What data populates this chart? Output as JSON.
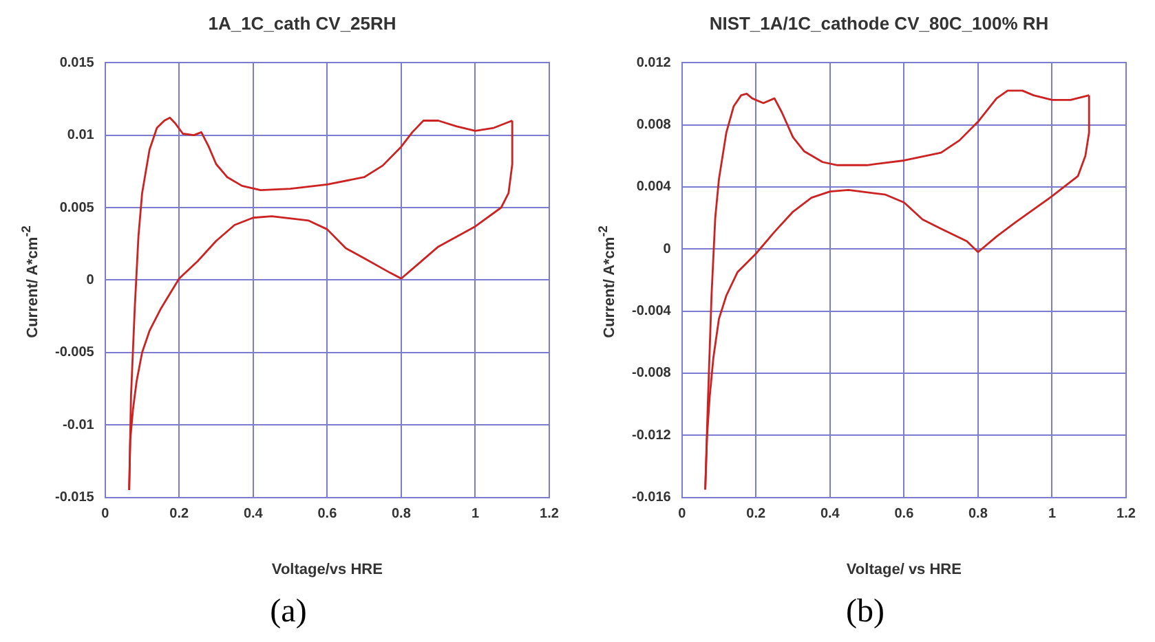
{
  "chart_data": [
    {
      "type": "line",
      "title": "1A_1C_cath CV_25RH",
      "xlabel": "Voltage/vs HRE",
      "ylabel": "Current/ A*cm$^{-2}$",
      "annotations": [
        "(a)"
      ],
      "grid": true,
      "legend": false,
      "marker": "none",
      "line_style": "solid",
      "xlim": [
        0,
        1.2
      ],
      "xticks": [
        0,
        0.2,
        0.4,
        0.6,
        0.8,
        1,
        1.2
      ],
      "ylim": [
        -0.015,
        0.015
      ],
      "yticks": [
        -0.015,
        -0.01,
        -0.005,
        0,
        0.005,
        0.01,
        0.015
      ],
      "series": [
        {
          "color": "#cc2222",
          "x": [
            0.065,
            0.07,
            0.08,
            0.09,
            0.1,
            0.12,
            0.14,
            0.16,
            0.175,
            0.19,
            0.21,
            0.24,
            0.26,
            0.28,
            0.3,
            0.33,
            0.37,
            0.42,
            0.5,
            0.6,
            0.7,
            0.75,
            0.8,
            0.83,
            0.86,
            0.9,
            0.95,
            1.0,
            1.05,
            1.1
          ],
          "values": [
            -0.0145,
            -0.008,
            -0.002,
            0.003,
            0.006,
            0.009,
            0.0105,
            0.011,
            0.0112,
            0.0108,
            0.0101,
            0.01,
            0.0102,
            0.0092,
            0.008,
            0.0071,
            0.0065,
            0.0062,
            0.0063,
            0.0066,
            0.0071,
            0.0079,
            0.0092,
            0.0102,
            0.011,
            0.011,
            0.0106,
            0.0103,
            0.0105,
            0.011
          ]
        },
        {
          "color": "#cc2222",
          "x": [
            0.065,
            0.068,
            0.075,
            0.085,
            0.1,
            0.12,
            0.15,
            0.2,
            0.25,
            0.3,
            0.35,
            0.4,
            0.45,
            0.55,
            0.6,
            0.65,
            0.7,
            0.77,
            0.8,
            0.85,
            0.9,
            1.0,
            1.07,
            1.09,
            1.1,
            1.1
          ],
          "values": [
            -0.0145,
            -0.011,
            -0.009,
            -0.007,
            -0.005,
            -0.0035,
            -0.002,
            0.0001,
            0.0013,
            0.0027,
            0.0038,
            0.0043,
            0.0044,
            0.0041,
            0.0035,
            0.0022,
            0.0015,
            0.0005,
            0.0001,
            0.0012,
            0.0023,
            0.0037,
            0.005,
            0.006,
            0.008,
            0.011
          ]
        }
      ]
    },
    {
      "type": "line",
      "title": "NIST_1A/1C_cathode CV_80C_100% RH",
      "xlabel": "Voltage/ vs HRE",
      "ylabel": "Current/ A*cm$^{-2}$",
      "annotations": [
        "(b)"
      ],
      "grid": true,
      "legend": false,
      "marker": "none",
      "line_style": "solid",
      "xlim": [
        0,
        1.2
      ],
      "xticks": [
        0,
        0.2,
        0.4,
        0.6,
        0.8,
        1,
        1.2
      ],
      "ylim": [
        -0.016,
        0.012
      ],
      "yticks": [
        -0.016,
        -0.012,
        -0.008,
        -0.004,
        0,
        0.004,
        0.008,
        0.012
      ],
      "series": [
        {
          "color": "#cc2222",
          "x": [
            0.063,
            0.07,
            0.08,
            0.09,
            0.1,
            0.12,
            0.14,
            0.16,
            0.175,
            0.19,
            0.22,
            0.25,
            0.27,
            0.3,
            0.33,
            0.38,
            0.42,
            0.5,
            0.6,
            0.7,
            0.75,
            0.8,
            0.85,
            0.88,
            0.92,
            0.95,
            1.0,
            1.05,
            1.1
          ],
          "values": [
            -0.0155,
            -0.01,
            -0.003,
            0.002,
            0.0045,
            0.0075,
            0.0092,
            0.0099,
            0.01,
            0.0097,
            0.0094,
            0.0097,
            0.0088,
            0.0072,
            0.0063,
            0.0056,
            0.0054,
            0.0054,
            0.0057,
            0.0062,
            0.007,
            0.0082,
            0.0097,
            0.0102,
            0.0102,
            0.0099,
            0.0096,
            0.0096,
            0.0099
          ]
        },
        {
          "color": "#cc2222",
          "x": [
            0.063,
            0.068,
            0.075,
            0.085,
            0.1,
            0.12,
            0.15,
            0.2,
            0.25,
            0.3,
            0.35,
            0.4,
            0.45,
            0.55,
            0.6,
            0.65,
            0.7,
            0.77,
            0.8,
            0.85,
            0.9,
            1.0,
            1.07,
            1.09,
            1.1,
            1.1
          ],
          "values": [
            -0.0155,
            -0.012,
            -0.0095,
            -0.007,
            -0.0045,
            -0.003,
            -0.0015,
            -0.0003,
            0.0011,
            0.0024,
            0.0033,
            0.0037,
            0.0038,
            0.0035,
            0.003,
            0.0019,
            0.0013,
            0.0005,
            -0.0002,
            0.0008,
            0.0017,
            0.0034,
            0.0047,
            0.006,
            0.0075,
            0.0099
          ]
        }
      ]
    }
  ]
}
